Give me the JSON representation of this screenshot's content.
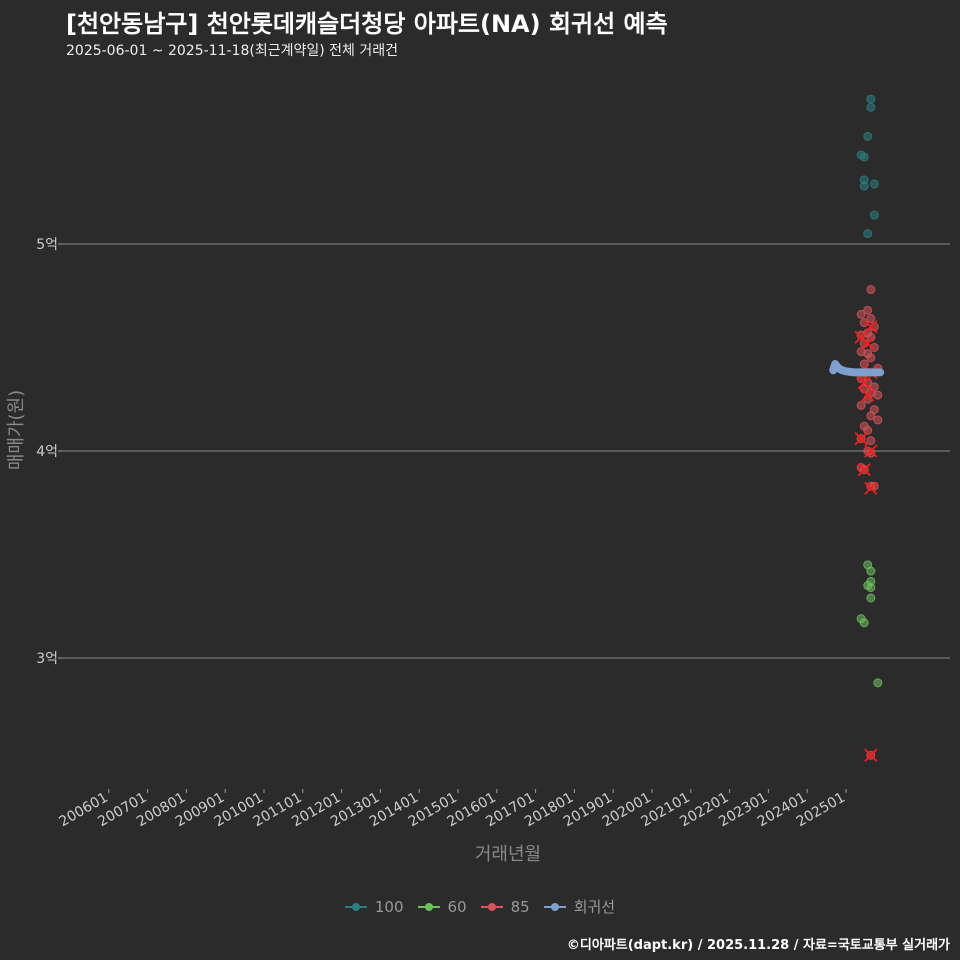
{
  "title": "[천안동남구] 천안롯데캐슬더청당 아파트(NA) 회귀선 예측",
  "subtitle": "2025-06-01 ~ 2025-11-18(최근계약일) 전체 거래건",
  "caption": "©디아파트(dapt.kr) / 2025.11.28 / 자료=국토교통부 실거래가",
  "chart_data": {
    "type": "scatter",
    "xlabel": "거래년월",
    "ylabel": "매매가(원)",
    "x_ticks": [
      "200601",
      "200701",
      "200801",
      "200901",
      "201001",
      "201101",
      "201201",
      "201301",
      "201401",
      "201501",
      "201601",
      "201701",
      "201801",
      "201901",
      "202001",
      "202101",
      "202201",
      "202301",
      "202401",
      "202501"
    ],
    "y_ticks": [
      {
        "value": 3,
        "label": "3억"
      },
      {
        "value": 4,
        "label": "4억"
      },
      {
        "value": 5,
        "label": "5억"
      }
    ],
    "ylim": [
      2.4,
      5.8
    ],
    "xlim": [
      2005.6,
      2026.2
    ],
    "colors": {
      "100": "#2a7f7f",
      "60": "#6dbf5f",
      "85": "#d9535a",
      "회귀선": "#7f9fcf"
    },
    "series": [
      {
        "name": "100",
        "points": [
          [
            2025.64,
            5.7
          ],
          [
            2025.64,
            5.66
          ],
          [
            2025.56,
            5.52
          ],
          [
            2025.39,
            5.43
          ],
          [
            2025.47,
            5.42
          ],
          [
            2025.47,
            5.31
          ],
          [
            2025.47,
            5.28
          ],
          [
            2025.73,
            5.29
          ],
          [
            2025.73,
            5.14
          ],
          [
            2025.56,
            5.05
          ]
        ]
      },
      {
        "name": "60",
        "points": [
          [
            2025.56,
            3.45
          ],
          [
            2025.64,
            3.42
          ],
          [
            2025.64,
            3.37
          ],
          [
            2025.56,
            3.35
          ],
          [
            2025.64,
            3.34
          ],
          [
            2025.64,
            3.29
          ],
          [
            2025.39,
            3.19
          ],
          [
            2025.47,
            3.17
          ],
          [
            2025.82,
            2.88
          ]
        ]
      },
      {
        "name": "85",
        "points": [
          [
            2025.64,
            4.78
          ],
          [
            2025.39,
            4.66
          ],
          [
            2025.56,
            4.68
          ],
          [
            2025.64,
            4.64
          ],
          [
            2025.47,
            4.62
          ],
          [
            2025.73,
            4.6
          ],
          [
            2025.39,
            4.56
          ],
          [
            2025.56,
            4.57
          ],
          [
            2025.64,
            4.55
          ],
          [
            2025.47,
            4.52
          ],
          [
            2025.73,
            4.5
          ],
          [
            2025.39,
            4.48
          ],
          [
            2025.56,
            4.47
          ],
          [
            2025.64,
            4.45
          ],
          [
            2025.47,
            4.42
          ],
          [
            2025.82,
            4.4
          ],
          [
            2025.39,
            4.35
          ],
          [
            2025.56,
            4.33
          ],
          [
            2025.73,
            4.31
          ],
          [
            2025.47,
            4.3
          ],
          [
            2025.64,
            4.28
          ],
          [
            2025.82,
            4.27
          ],
          [
            2025.56,
            4.25
          ],
          [
            2025.39,
            4.22
          ],
          [
            2025.73,
            4.2
          ],
          [
            2025.64,
            4.17
          ],
          [
            2025.82,
            4.15
          ],
          [
            2025.47,
            4.12
          ],
          [
            2025.56,
            4.1
          ],
          [
            2025.39,
            4.06
          ],
          [
            2025.64,
            4.05
          ],
          [
            2025.56,
            4.0
          ],
          [
            2025.64,
            3.99
          ],
          [
            2025.39,
            3.92
          ],
          [
            2025.47,
            3.91
          ],
          [
            2025.64,
            3.83
          ],
          [
            2025.73,
            3.83
          ],
          [
            2025.64,
            2.53
          ]
        ],
        "outliers": [
          [
            2025.64,
            4.6
          ],
          [
            2025.39,
            4.55
          ],
          [
            2025.56,
            4.52
          ],
          [
            2025.64,
            4.38
          ],
          [
            2025.47,
            4.33
          ],
          [
            2025.56,
            4.27
          ],
          [
            2025.39,
            4.06
          ],
          [
            2025.64,
            4.0
          ],
          [
            2025.47,
            3.91
          ],
          [
            2025.64,
            3.82
          ],
          [
            2025.64,
            2.53
          ]
        ]
      },
      {
        "name": "회귀선",
        "type": "line",
        "points": [
          [
            2024.67,
            4.39
          ],
          [
            2024.72,
            4.42
          ],
          [
            2024.8,
            4.4
          ],
          [
            2024.9,
            4.39
          ],
          [
            2025.0,
            4.385
          ],
          [
            2025.2,
            4.38
          ],
          [
            2025.5,
            4.38
          ],
          [
            2025.88,
            4.38
          ]
        ]
      }
    ]
  }
}
